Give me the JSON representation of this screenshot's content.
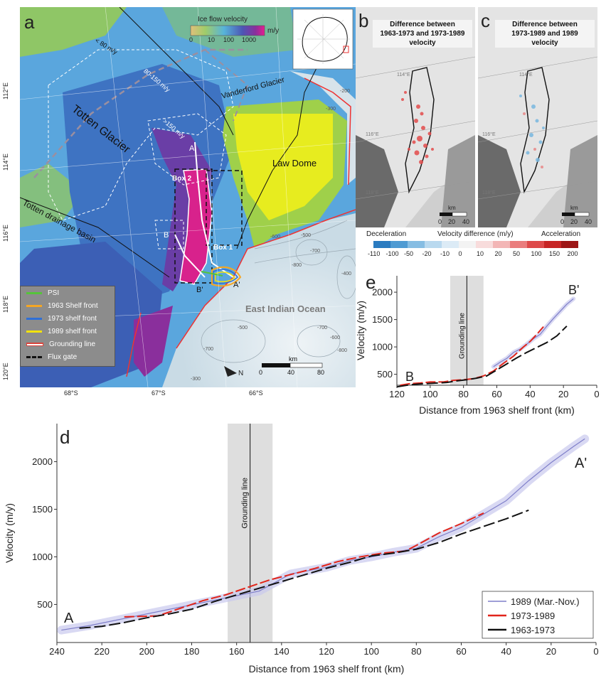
{
  "panel_a": {
    "label": "a",
    "colorbar_title": "Ice flow velocity",
    "colorbar_unit": "m/y",
    "colorbar_ticks": [
      "0",
      "10",
      "100",
      "1000"
    ],
    "lat_labels": [
      "112°E",
      "114°E",
      "116°E",
      "118°E",
      "120°E"
    ],
    "lon_labels": [
      "68°S",
      "67°S",
      "66°S"
    ],
    "map_labels": {
      "totten_glacier": "Totten Glacier",
      "vanderford": "Vanderford Glacier",
      "law_dome": "Law Dome",
      "drainage": "Totten drainage basin",
      "ocean": "East Indian Ocean",
      "lt80": "< 80 m/y",
      "r80_150": "80-150 m/y",
      "gt150": ">150 m/y",
      "box1": "Box 1",
      "box2": "Box 2",
      "A": "A",
      "Ap": "A'",
      "B": "B",
      "Bp": "B'",
      "north": "N"
    },
    "contour_labels": [
      "-200",
      "-300",
      "-400",
      "-500",
      "-600",
      "-700",
      "-800",
      "-300",
      "-500",
      "-700",
      "-600",
      "-800",
      "-700"
    ],
    "scalebar_unit": "km",
    "scalebar_ticks": [
      "0",
      "40",
      "80"
    ],
    "legend": [
      {
        "label": "PSI",
        "color": "#55c43a",
        "style": "solid"
      },
      {
        "label": "1963 Shelf front",
        "color": "#f5a623",
        "style": "solid"
      },
      {
        "label": "1973 shelf front",
        "color": "#2f6fd6",
        "style": "solid"
      },
      {
        "label": "1989 shelf front",
        "color": "#f2e20c",
        "style": "solid"
      },
      {
        "label": "Grounding line",
        "color": "#d9443c",
        "style": "outline"
      },
      {
        "label": "Flux gate",
        "color": "#111111",
        "style": "dashed"
      }
    ]
  },
  "panel_b": {
    "label": "b",
    "title_lines": [
      "Difference between",
      "1963-1973 and 1973-1989",
      "velocity"
    ],
    "scalebar_unit": "km",
    "scalebar_ticks": [
      "0",
      "20",
      "40"
    ],
    "grid_labels": [
      "114°E",
      "116°E",
      "118°E"
    ]
  },
  "panel_c": {
    "label": "c",
    "title_lines": [
      "Difference between",
      "1973-1989 and 1989",
      "velocity"
    ],
    "scalebar_unit": "km",
    "scalebar_ticks": [
      "0",
      "20",
      "40"
    ],
    "grid_labels": [
      "114°E",
      "116°E",
      "118°E"
    ]
  },
  "diff_colorbar": {
    "left_label": "Deceleration",
    "center_label": "Velocity difference (m/y)",
    "right_label": "Acceleration",
    "ticks": [
      "-110",
      "-100",
      "-50",
      "-20",
      "-10",
      "0",
      "10",
      "20",
      "50",
      "100",
      "150",
      "200"
    ],
    "colors": [
      "#2a7bc0",
      "#4f9bd3",
      "#86bde3",
      "#b9d9ef",
      "#dcebf6",
      "#f3f3f3",
      "#f8dcdc",
      "#f3b6b6",
      "#ea7d7d",
      "#de4a4a",
      "#c72525",
      "#9d1616"
    ]
  },
  "chart_data": [
    {
      "id": "e",
      "type": "line",
      "label": "e",
      "xlabel": "Distance from 1963 shelf front (km)",
      "ylabel": "Velocity (m/y)",
      "xlim": [
        120,
        0
      ],
      "ylim": [
        300,
        2300
      ],
      "xticks": [
        120,
        100,
        80,
        60,
        40,
        20,
        0
      ],
      "yticks": [
        500,
        1000,
        1500,
        2000
      ],
      "grounding_line": {
        "x": 78,
        "band": [
          88,
          68
        ],
        "label": "Grounding line"
      },
      "start_label": "B",
      "end_label": "B'",
      "series": [
        {
          "name": "1989 (Mar.-Nov.)",
          "color": "#7f7fc9",
          "x": [
            62,
            58,
            54,
            50,
            46,
            42,
            38,
            34,
            30,
            26,
            22,
            18,
            14
          ],
          "y": [
            640,
            720,
            790,
            900,
            960,
            1050,
            1150,
            1230,
            1380,
            1520,
            1650,
            1780,
            1880
          ]
        },
        {
          "name": "1973-1989",
          "color": "#e1251b",
          "x": [
            118,
            112,
            106,
            100,
            92,
            86,
            80,
            74,
            68,
            62,
            56,
            50,
            44,
            40,
            36,
            32
          ],
          "y": [
            300,
            330,
            340,
            360,
            360,
            390,
            400,
            420,
            470,
            560,
            700,
            830,
            1000,
            1100,
            1230,
            1370
          ]
        },
        {
          "name": "1963-1973",
          "color": "#111111",
          "x": [
            120,
            114,
            108,
            102,
            96,
            90,
            84,
            78,
            72,
            66,
            60,
            54,
            48,
            42,
            36,
            30,
            24,
            18
          ],
          "y": [
            270,
            300,
            320,
            330,
            340,
            350,
            380,
            400,
            430,
            470,
            580,
            690,
            800,
            900,
            990,
            1080,
            1200,
            1380
          ]
        }
      ]
    },
    {
      "id": "d",
      "type": "line",
      "label": "d",
      "xlabel": "Distance from 1963 shelf front (km)",
      "ylabel": "Velocity (m/y)",
      "xlim": [
        240,
        0
      ],
      "ylim": [
        100,
        2400
      ],
      "xticks": [
        240,
        220,
        200,
        180,
        160,
        140,
        120,
        100,
        80,
        60,
        40,
        20,
        0
      ],
      "yticks": [
        500,
        1000,
        1500,
        2000
      ],
      "grounding_line": {
        "x": 154,
        "band": [
          164,
          144
        ],
        "label": "Grounding line"
      },
      "start_label": "A",
      "end_label": "A'",
      "legend_position": "bottom-right",
      "series": [
        {
          "name": "1989 (Mar.-Nov.)",
          "color": "#7f7fc9",
          "x": [
            238,
            225,
            150,
            136,
            120,
            110,
            100,
            90,
            80,
            70,
            60,
            50,
            40,
            30,
            20,
            10,
            5
          ],
          "y": [
            230,
            280,
            640,
            820,
            890,
            960,
            1000,
            1050,
            1090,
            1210,
            1310,
            1450,
            1590,
            1800,
            1990,
            2160,
            2240
          ]
        },
        {
          "name": "1973-1989",
          "color": "#e1251b",
          "x": [
            210,
            195,
            185,
            175,
            165,
            155,
            145,
            135,
            125,
            115,
            105,
            95,
            85,
            80,
            70,
            60,
            50
          ],
          "y": [
            370,
            380,
            460,
            540,
            600,
            680,
            760,
            820,
            880,
            950,
            1000,
            1040,
            1060,
            1120,
            1250,
            1350,
            1460
          ]
        },
        {
          "name": "1963-1973",
          "color": "#111111",
          "x": [
            230,
            220,
            210,
            200,
            190,
            180,
            170,
            160,
            150,
            140,
            130,
            120,
            110,
            100,
            90,
            80,
            70,
            60,
            50,
            40,
            30
          ],
          "y": [
            250,
            270,
            310,
            360,
            400,
            450,
            530,
            600,
            670,
            740,
            810,
            880,
            940,
            1010,
            1040,
            1080,
            1150,
            1240,
            1320,
            1400,
            1490
          ]
        }
      ]
    }
  ]
}
